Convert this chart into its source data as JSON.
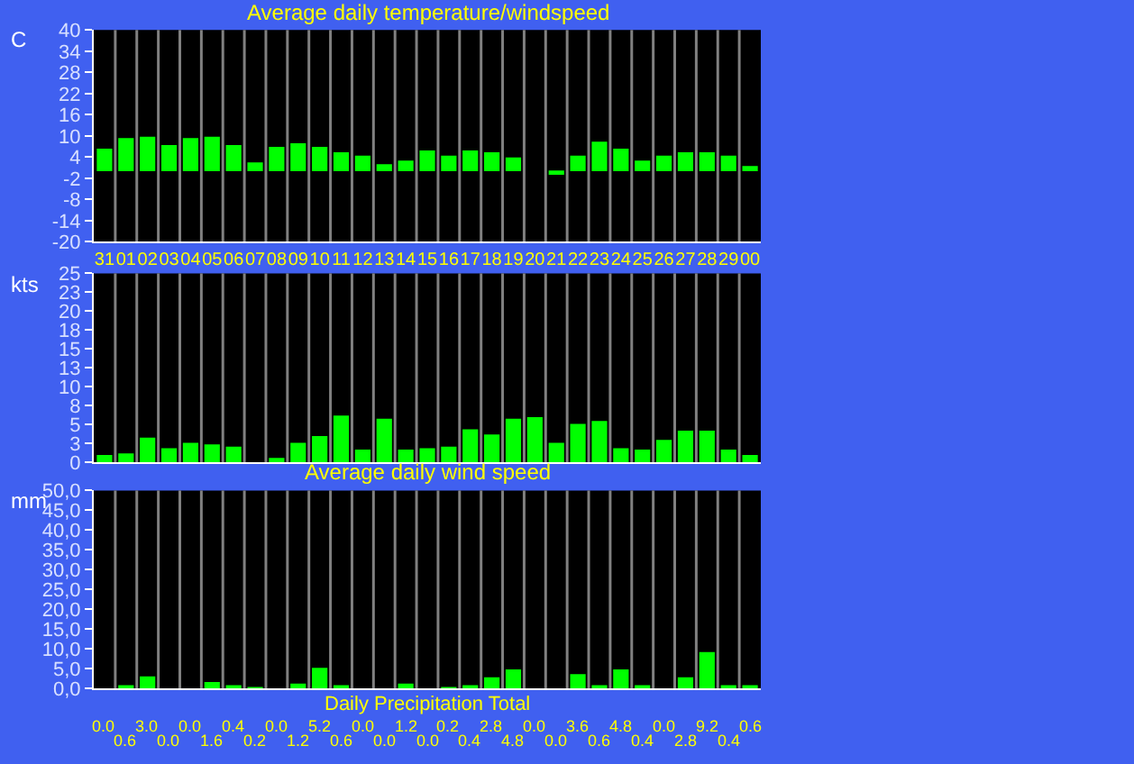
{
  "chart_data": [
    {
      "type": "bar",
      "title": "Average daily temperature/windspeed",
      "ylabel": "C",
      "categories": [
        "31",
        "01",
        "02",
        "03",
        "04",
        "05",
        "06",
        "07",
        "08",
        "09",
        "10",
        "11",
        "12",
        "13",
        "14",
        "15",
        "16",
        "17",
        "18",
        "19",
        "20",
        "21",
        "22",
        "23",
        "24",
        "25",
        "26",
        "27",
        "28",
        "29",
        "00"
      ],
      "series": [
        {
          "color": "#00ff00",
          "values": [
            6.4,
            9.4,
            9.8,
            7.4,
            9.4,
            9.8,
            7.4,
            2.5,
            6.9,
            7.9,
            6.9,
            5.4,
            4.4,
            2.0,
            3.0,
            5.9,
            4.4,
            5.9,
            5.4,
            3.9,
            0.0,
            -1.0,
            4.4,
            8.4,
            6.4,
            3.0,
            4.4,
            5.4,
            5.4,
            4.4,
            1.5
          ]
        }
      ],
      "ylim": [
        -20,
        40
      ],
      "yticks": [
        -20,
        -14,
        -8,
        -2,
        4,
        10,
        16,
        22,
        28,
        34,
        40
      ],
      "grid": "x"
    },
    {
      "type": "bar",
      "ylabel": "kts",
      "categories": [
        "31",
        "01",
        "02",
        "03",
        "04",
        "05",
        "06",
        "07",
        "08",
        "09",
        "10",
        "11",
        "12",
        "13",
        "14",
        "15",
        "16",
        "17",
        "18",
        "19",
        "20",
        "21",
        "22",
        "23",
        "24",
        "25",
        "26",
        "27",
        "28",
        "29",
        "00"
      ],
      "series": [
        {
          "color": "#00ff00",
          "values": [
            1.0,
            1.2,
            3.3,
            1.9,
            2.6,
            2.4,
            2.1,
            0,
            0.6,
            2.6,
            3.5,
            6.2,
            1.7,
            5.8,
            1.7,
            1.9,
            2.1,
            4.4,
            3.7,
            5.8,
            6.0,
            2.6,
            5.1,
            5.5,
            1.9,
            1.7,
            3.0,
            4.2,
            4.2,
            1.7,
            1.0
          ]
        }
      ],
      "ylim": [
        0,
        25
      ],
      "yticks": [
        0,
        {
          "value": 2.5,
          "label": "3"
        },
        5,
        {
          "value": 7.5,
          "label": "8"
        },
        10,
        {
          "value": 12.5,
          "label": "13"
        },
        15,
        {
          "value": 17.5,
          "label": "18"
        },
        20,
        {
          "value": 22.5,
          "label": "23"
        },
        25
      ],
      "tick_labels": "y",
      "grid": "x"
    },
    {
      "type": "bar",
      "title": "Average daily wind speed",
      "xlabel": "Daily Precipitation Total",
      "ylabel": "mm",
      "categories": [
        "31",
        "01",
        "02",
        "03",
        "04",
        "05",
        "06",
        "07",
        "08",
        "09",
        "10",
        "11",
        "12",
        "13",
        "14",
        "15",
        "16",
        "17",
        "18",
        "19",
        "20",
        "21",
        "22",
        "23",
        "24",
        "25",
        "26",
        "27",
        "28",
        "29",
        "00"
      ],
      "series": [
        {
          "color": "#00ff00",
          "values": [
            0.0,
            0.6,
            3.0,
            0.0,
            0.0,
            1.6,
            0.4,
            0.2,
            0.0,
            1.2,
            5.2,
            0.6,
            0.0,
            0.0,
            1.2,
            0.0,
            0.2,
            0.4,
            2.8,
            4.8,
            0.0,
            0.0,
            3.6,
            0.6,
            4.8,
            0.4,
            0.0,
            2.8,
            9.2,
            0.4,
            0.6
          ],
          "value_labels": [
            "0.0",
            "0.6",
            "3.0",
            "0.0",
            "0.0",
            "1.6",
            "0.4",
            "0.2",
            "0.0",
            "1.2",
            "5.2",
            "0.6",
            "0.0",
            "0.0",
            "1.2",
            "0.0",
            "0.2",
            "0.4",
            "2.8",
            "4.8",
            "0.0",
            "0.0",
            "3.6",
            "0.6",
            "4.8",
            "0.4",
            "0.0",
            "2.8",
            "9.2",
            "0.4",
            "0.6"
          ]
        }
      ],
      "ylim": [
        0,
        50
      ],
      "yticks": [
        {
          "value": 0,
          "label": "0,0"
        },
        {
          "value": 5,
          "label": "5,0"
        },
        {
          "value": 10,
          "label": "10,0"
        },
        {
          "value": 15,
          "label": "15,0"
        },
        {
          "value": 20,
          "label": "20,0"
        },
        {
          "value": 25,
          "label": "25,0"
        },
        {
          "value": 30,
          "label": "30,0"
        },
        {
          "value": 35,
          "label": "35,0"
        },
        {
          "value": 40,
          "label": "40,0"
        },
        {
          "value": 45,
          "label": "45,0"
        },
        {
          "value": 50,
          "label": "50,0"
        }
      ],
      "tick_labels": "y",
      "grid": "x"
    }
  ]
}
